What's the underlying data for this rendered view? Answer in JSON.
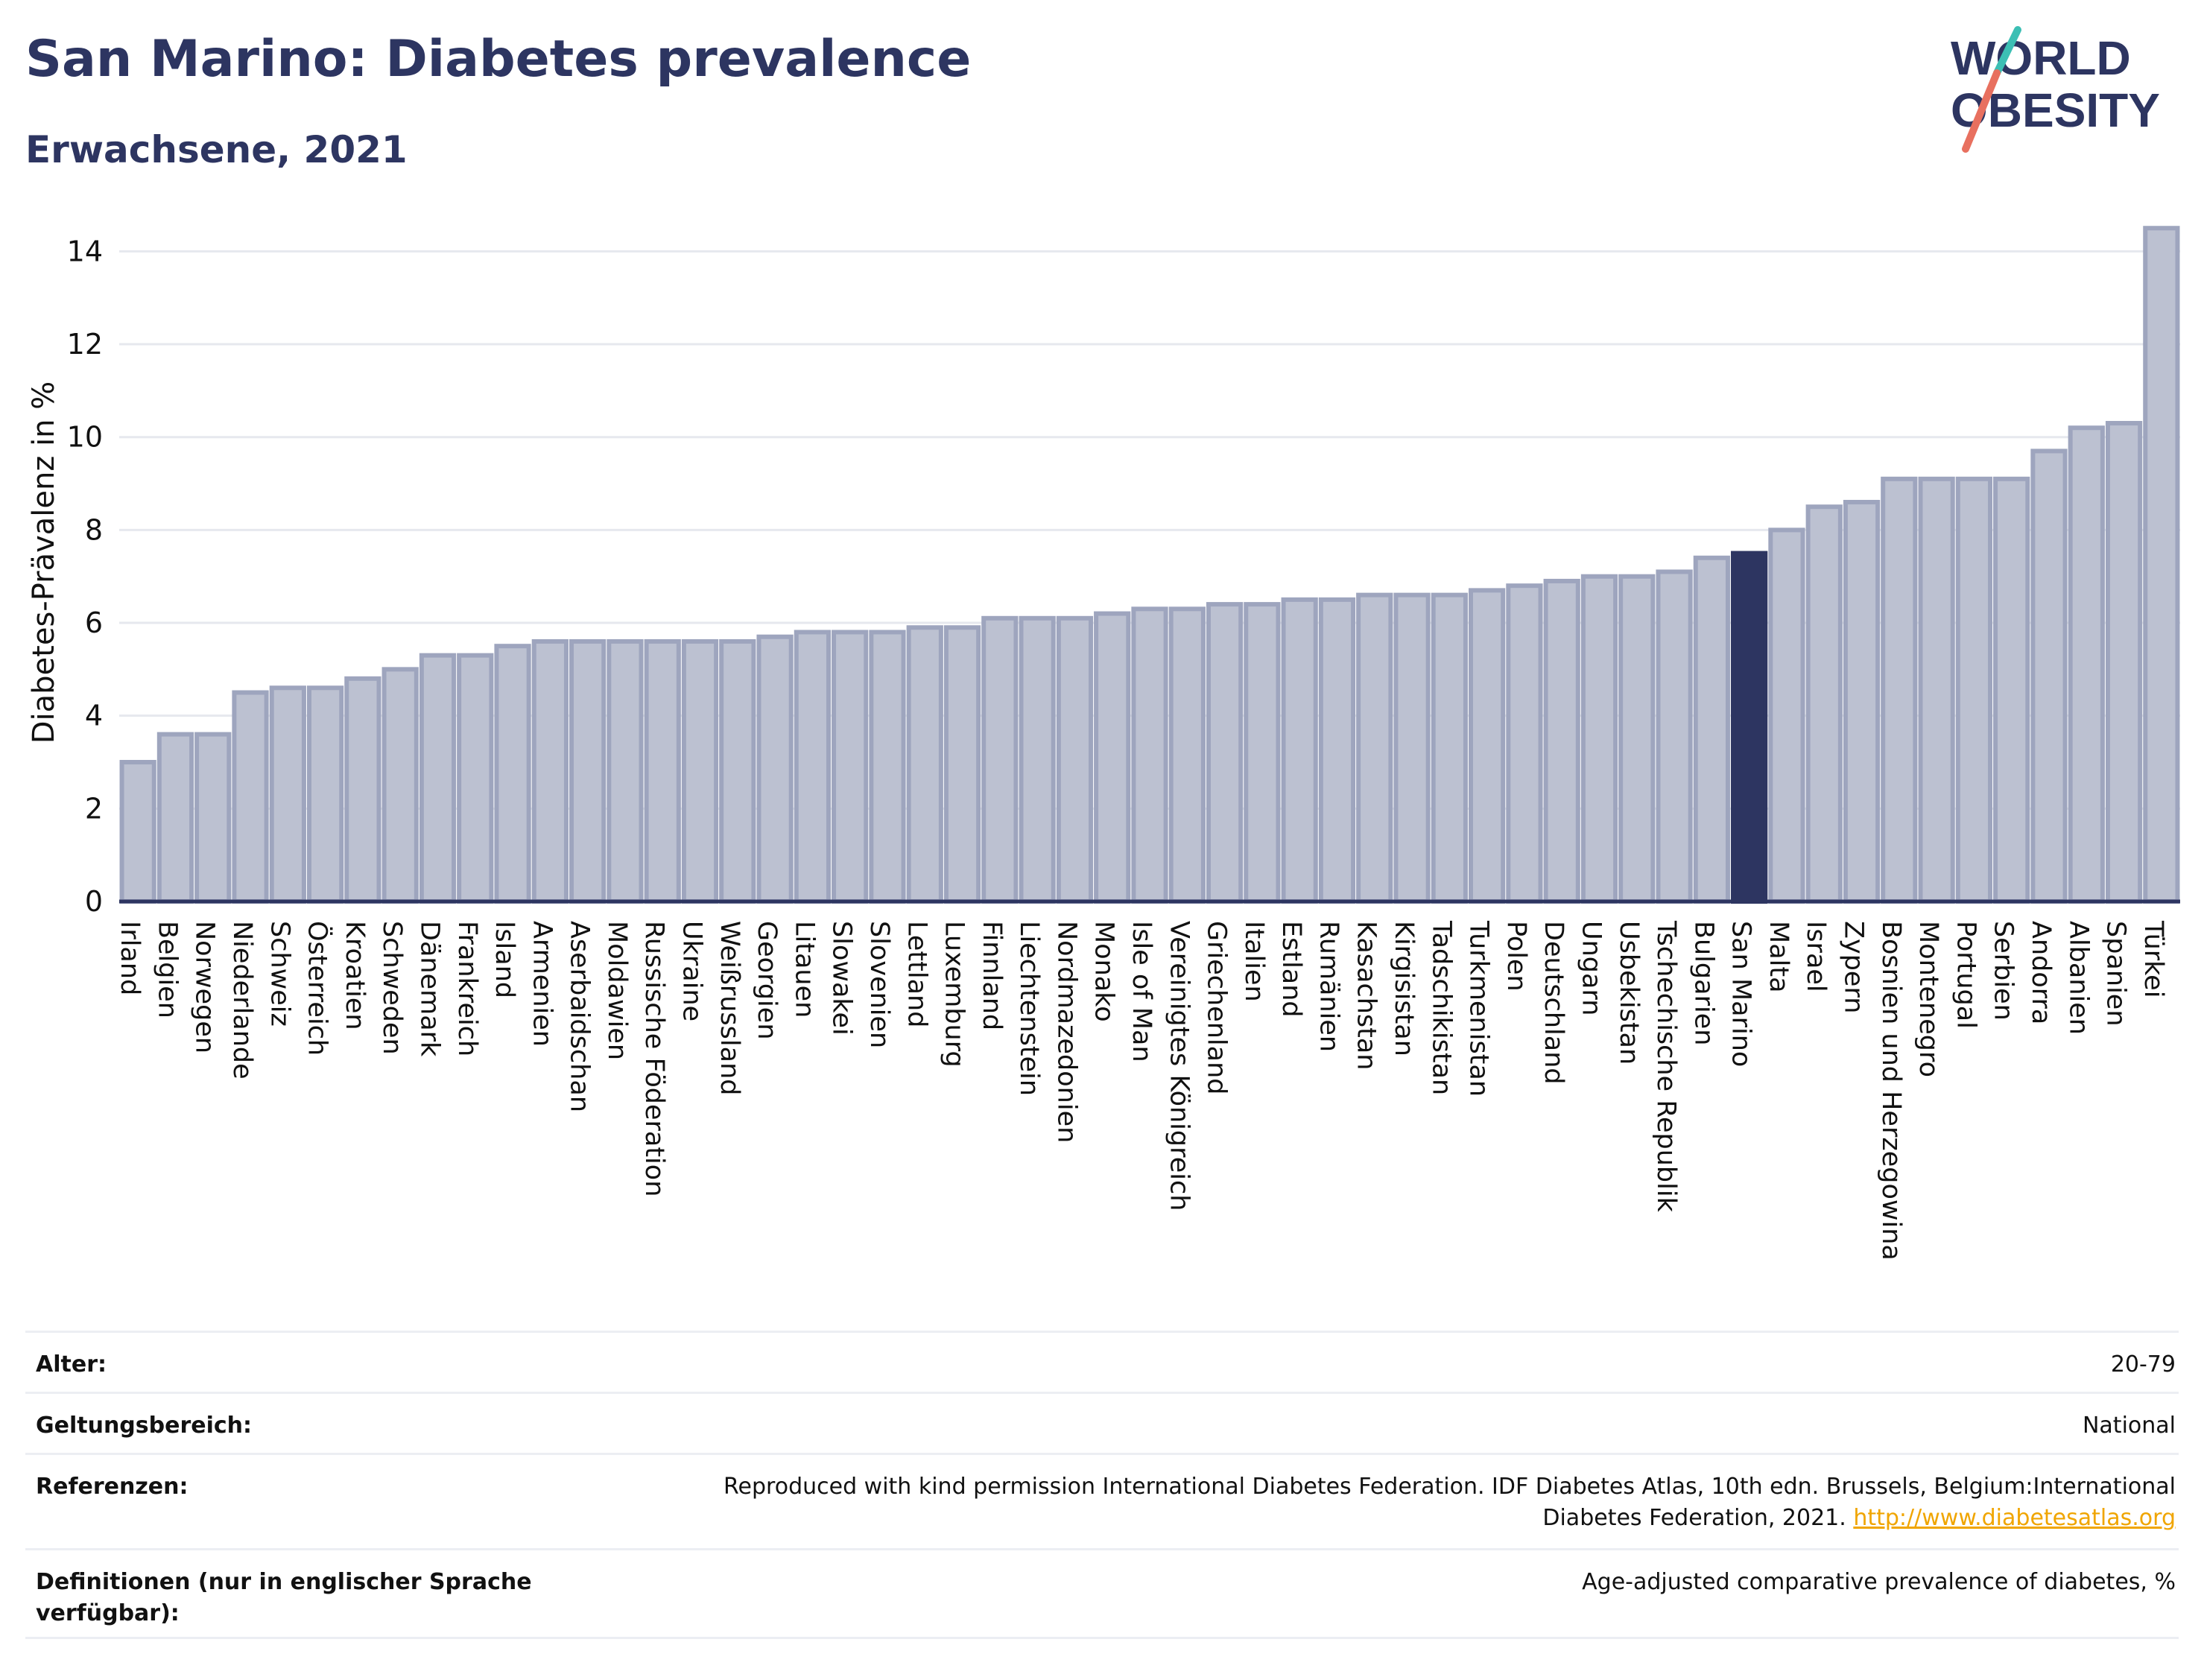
{
  "title": "San Marino: Diabetes prevalence",
  "subtitle": "Erwachsene, 2021",
  "logo": {
    "line1": "WORLD",
    "line2": "OBESITY",
    "colors": [
      "#2d3561",
      "#e8705f",
      "#3cbfb4"
    ]
  },
  "chart_data": {
    "type": "bar",
    "ylabel": "Diabetes-Prävalenz in %",
    "ylim": [
      0,
      14.6
    ],
    "yticks": [
      0,
      2,
      4,
      6,
      8,
      10,
      12,
      14
    ],
    "grid": true,
    "highlight": "San Marino",
    "colors": {
      "bar": "#bcc1d1",
      "bar_border": "#9ea5be",
      "highlight": "#2d3561",
      "axis": "#2d3561",
      "grid": "#e6e8ee"
    },
    "categories": [
      "Irland",
      "Belgien",
      "Norwegen",
      "Niederlande",
      "Schweiz",
      "Österreich",
      "Kroatien",
      "Schweden",
      "Dänemark",
      "Frankreich",
      "Island",
      "Armenien",
      "Aserbaidschan",
      "Moldawien",
      "Russische Föderation",
      "Ukraine",
      "Weißrussland",
      "Georgien",
      "Litauen",
      "Slowakei",
      "Slovenien",
      "Lettland",
      "Luxemburg",
      "Finnland",
      "Liechtenstein",
      "Nordmazedonien",
      "Monako",
      "Isle of Man",
      "Vereinigtes Königreich",
      "Griechenland",
      "Italien",
      "Estland",
      "Rumänien",
      "Kasachstan",
      "Kirgisistan",
      "Tadschikistan",
      "Turkmenistan",
      "Polen",
      "Deutschland",
      "Ungarn",
      "Usbekistan",
      "Tschechische Republik",
      "Bulgarien",
      "San Marino",
      "Malta",
      "Israel",
      "Zypern",
      "Bosnien und Herzegowina",
      "Montenegro",
      "Portugal",
      "Serbien",
      "Andorra",
      "Albanien",
      "Spanien",
      "Türkei"
    ],
    "values": [
      3.0,
      3.6,
      3.6,
      4.5,
      4.6,
      4.6,
      4.8,
      5.0,
      5.3,
      5.3,
      5.5,
      5.6,
      5.6,
      5.6,
      5.6,
      5.6,
      5.6,
      5.7,
      5.8,
      5.8,
      5.8,
      5.9,
      5.9,
      6.1,
      6.1,
      6.1,
      6.2,
      6.3,
      6.3,
      6.4,
      6.4,
      6.5,
      6.5,
      6.6,
      6.6,
      6.6,
      6.7,
      6.8,
      6.9,
      7.0,
      7.0,
      7.1,
      7.4,
      7.5,
      8.0,
      8.5,
      8.6,
      9.1,
      9.1,
      9.1,
      9.1,
      9.7,
      10.2,
      10.3,
      14.5
    ]
  },
  "meta": [
    {
      "label": "Alter:",
      "value": "20-79"
    },
    {
      "label": "Geltungsbereich:",
      "value": "National"
    },
    {
      "label": "Referenzen:",
      "value": "Reproduced with kind permission International Diabetes Federation.  IDF Diabetes Atlas, 10th edn. Brussels, Belgium:International Diabetes Federation, 2021.",
      "link": "http://www.diabetesatlas.org"
    },
    {
      "label": "Definitionen (nur in englischer Sprache verfügbar):",
      "value": "Age-adjusted comparative prevalence of diabetes, %"
    }
  ]
}
